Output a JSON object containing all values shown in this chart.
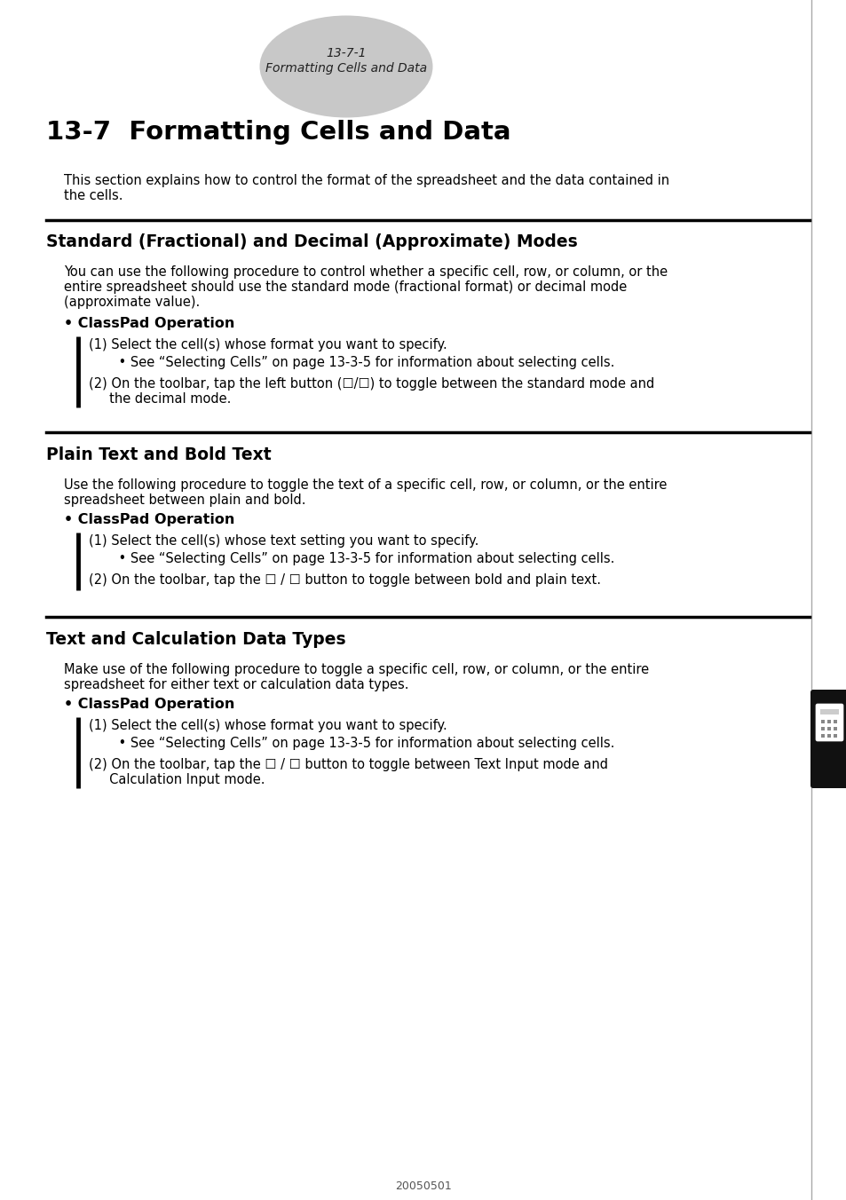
{
  "page_bg": "#ffffff",
  "ellipse_color": "#c8c8c8",
  "ellipse_text1": "13-7-1",
  "ellipse_text2": "Formatting Cells and Data",
  "main_title": "13-7  Formatting Cells and Data",
  "intro_text1": "This section explains how to control the format of the spreadsheet and the data contained in",
  "intro_text2": "the cells.",
  "section1_title": "Standard (Fractional) and Decimal (Approximate) Modes",
  "section1_body1": "You can use the following procedure to control whether a specific cell, row, or column, or the",
  "section1_body2": "entire spreadsheet should use the standard mode (fractional format) or decimal mode",
  "section1_body3": "(approximate value).",
  "classpad_op": "• ClassPad Operation",
  "s1_step1": "(1) Select the cell(s) whose format you want to specify.",
  "s1_bullet": "    • See “Selecting Cells” on page 13-3-5 for information about selecting cells.",
  "s1_step2a": "(2) On the toolbar, tap the left button (☐/☐) to toggle between the standard mode and",
  "s1_step2b": "     the decimal mode.",
  "section2_title": "Plain Text and Bold Text",
  "section2_body1": "Use the following procedure to toggle the text of a specific cell, row, or column, or the entire",
  "section2_body2": "spreadsheet between plain and bold.",
  "s2_step1": "(1) Select the cell(s) whose text setting you want to specify.",
  "s2_bullet": "    • See “Selecting Cells” on page 13-3-5 for information about selecting cells.",
  "s2_step2": "(2) On the toolbar, tap the ☐ / ☐ button to toggle between bold and plain text.",
  "section3_title": "Text and Calculation Data Types",
  "section3_body1": "Make use of the following procedure to toggle a specific cell, row, or column, or the entire",
  "section3_body2": "spreadsheet for either text or calculation data types.",
  "s3_step1": "(1) Select the cell(s) whose format you want to specify.",
  "s3_bullet": "    • See “Selecting Cells” on page 13-3-5 for information about selecting cells.",
  "s3_step2a": "(2) On the toolbar, tap the ☐ / ☐ button to toggle between Text Input mode and",
  "s3_step2b": "     Calculation Input mode.",
  "footer_text": "20050501",
  "sidebar_color": "#111111",
  "line_color": "#000000",
  "text_color": "#000000",
  "gray_text": "#444444"
}
